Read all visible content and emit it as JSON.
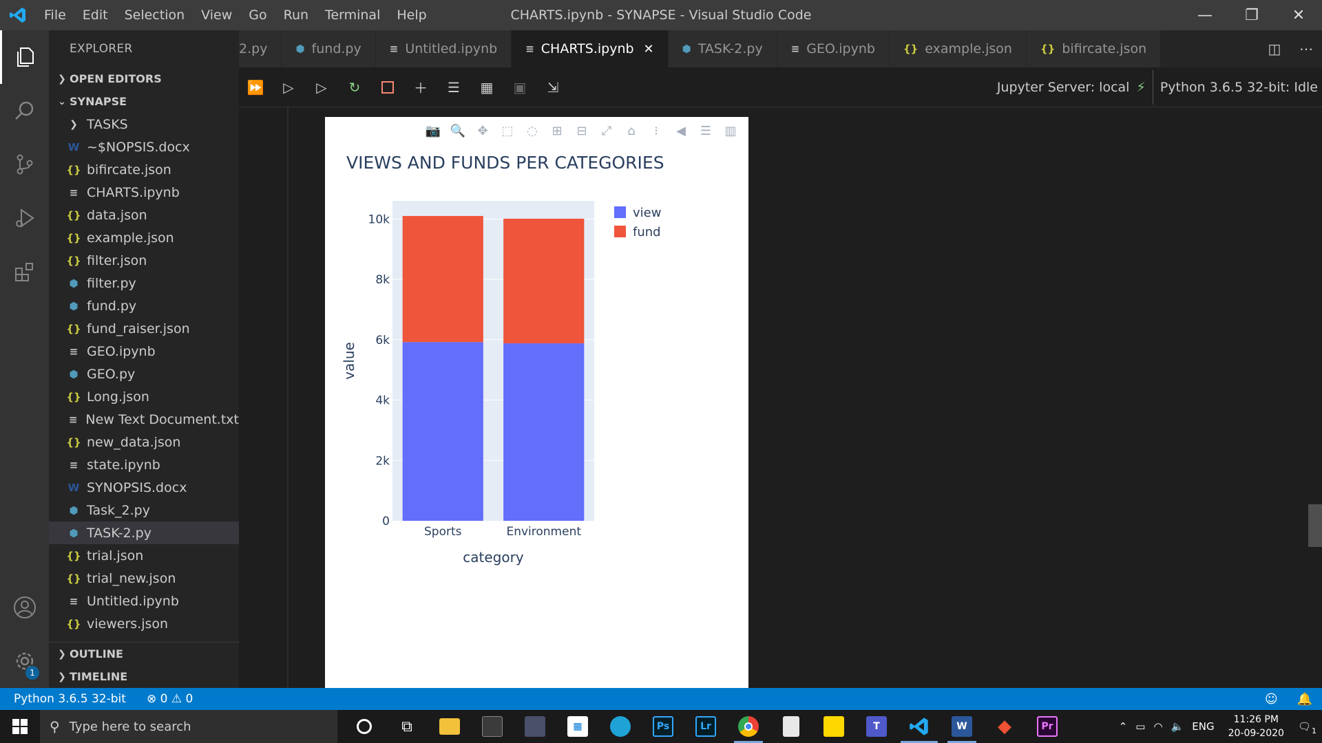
{
  "window": {
    "title": "CHARTS.ipynb - SYNAPSE - Visual Studio Code",
    "menu": [
      "File",
      "Edit",
      "Selection",
      "View",
      "Go",
      "Run",
      "Terminal",
      "Help"
    ],
    "minimize": "—",
    "restore": "❐",
    "close": "✕"
  },
  "sidebar": {
    "header": "EXPLORER",
    "open_editors": "OPEN EDITORS",
    "workspace": "SYNAPSE",
    "folder": "TASKS",
    "files": [
      {
        "name": "~$NOPSIS.docx",
        "type": "docx"
      },
      {
        "name": "bifircate.json",
        "type": "json"
      },
      {
        "name": "CHARTS.ipynb",
        "type": "ipynb"
      },
      {
        "name": "data.json",
        "type": "json"
      },
      {
        "name": "example.json",
        "type": "json"
      },
      {
        "name": "filter.json",
        "type": "json"
      },
      {
        "name": "filter.py",
        "type": "py"
      },
      {
        "name": "fund.py",
        "type": "py"
      },
      {
        "name": "fund_raiser.json",
        "type": "json"
      },
      {
        "name": "GEO.ipynb",
        "type": "ipynb"
      },
      {
        "name": "GEO.py",
        "type": "py"
      },
      {
        "name": "Long.json",
        "type": "json"
      },
      {
        "name": "New Text Document.txt",
        "type": "ipynb"
      },
      {
        "name": "new_data.json",
        "type": "json"
      },
      {
        "name": "state.ipynb",
        "type": "ipynb"
      },
      {
        "name": "SYNOPSIS.docx",
        "type": "docx"
      },
      {
        "name": "Task_2.py",
        "type": "py"
      },
      {
        "name": "TASK-2.py",
        "type": "py"
      },
      {
        "name": "trial.json",
        "type": "json"
      },
      {
        "name": "trial_new.json",
        "type": "json"
      },
      {
        "name": "Untitled.ipynb",
        "type": "ipynb"
      },
      {
        "name": "viewers.json",
        "type": "json"
      }
    ],
    "selected_file": "TASK-2.py",
    "outline": "OUTLINE",
    "timeline": "TIMELINE"
  },
  "tabs": [
    {
      "label": "2.py",
      "type": "py",
      "active": false
    },
    {
      "label": "fund.py",
      "type": "py",
      "active": false
    },
    {
      "label": "Untitled.ipynb",
      "type": "ipynb",
      "active": false
    },
    {
      "label": "CHARTS.ipynb",
      "type": "ipynb",
      "active": true
    },
    {
      "label": "TASK-2.py",
      "type": "py",
      "active": false
    },
    {
      "label": "GEO.ipynb",
      "type": "ipynb",
      "active": false
    },
    {
      "label": "example.json",
      "type": "json",
      "active": false
    },
    {
      "label": "bifircate.json",
      "type": "json",
      "active": false
    }
  ],
  "notebook_toolbar": {
    "jupyter_server": "Jupyter Server: local",
    "kernel": "Python 3.6.5 32-bit: Idle"
  },
  "chart_data": {
    "type": "bar",
    "barmode": "stack",
    "title": "VIEWS AND FUNDS PER CATEGORIES",
    "xlabel": "category",
    "ylabel": "value",
    "categories": [
      "Sports",
      "Environment"
    ],
    "series": [
      {
        "name": "view",
        "values": [
          5920,
          5880
        ],
        "color": "#636efa"
      },
      {
        "name": "fund",
        "values": [
          4180,
          4130
        ],
        "color": "#ef553b"
      }
    ],
    "ylim": [
      0,
      10600
    ],
    "yticks": [
      0,
      2000,
      4000,
      6000,
      8000,
      10000
    ],
    "yticklabels": [
      "0",
      "2k",
      "4k",
      "6k",
      "8k",
      "10k"
    ],
    "legend_position": "top-right",
    "grid": true,
    "plot_bg": "#e5ecf6"
  },
  "statusbar": {
    "interpreter": "Python 3.6.5 32-bit",
    "errors": "0",
    "warnings": "0"
  },
  "taskbar": {
    "search_placeholder": "Type here to search",
    "language": "ENG",
    "time": "11:26 PM",
    "date": "20-09-2020",
    "notifications": "1",
    "apps": [
      "cortana",
      "task-view",
      "file-explorer",
      "app-5",
      "app-6",
      "store",
      "edge",
      "photoshop",
      "lightroom",
      "chrome",
      "file-app",
      "sticky-notes",
      "teams",
      "vscode",
      "word",
      "git",
      "premiere"
    ],
    "app_labels": {
      "photoshop": "Ps",
      "lightroom": "Lr",
      "word": "W",
      "premiere": "Pr"
    }
  },
  "activity_badge": "1"
}
